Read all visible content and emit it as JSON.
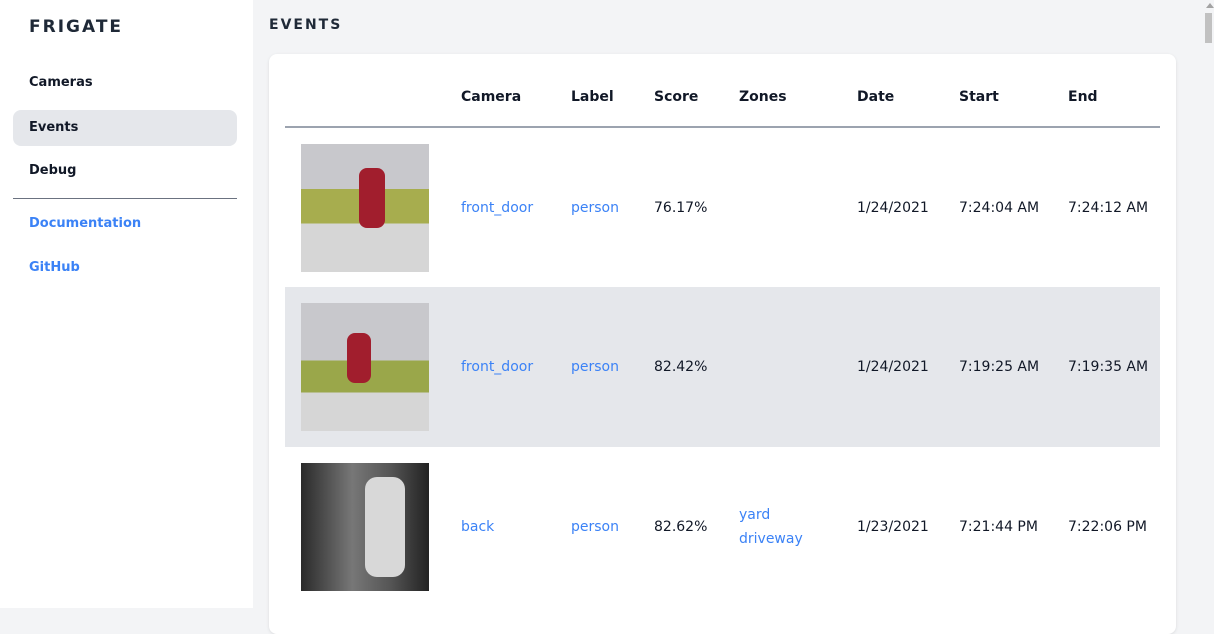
{
  "app": {
    "title": "FRIGATE"
  },
  "sidebar": {
    "items": [
      {
        "label": "Cameras"
      },
      {
        "label": "Events",
        "active": true
      },
      {
        "label": "Debug"
      }
    ],
    "links": [
      {
        "label": "Documentation"
      },
      {
        "label": "GitHub"
      }
    ]
  },
  "page": {
    "title": "EVENTS"
  },
  "table": {
    "columns": [
      "",
      "Camera",
      "Label",
      "Score",
      "Zones",
      "Date",
      "Start",
      "End"
    ],
    "rows": [
      {
        "camera": "front_door",
        "label": "person",
        "score": "76.17%",
        "zones": [
          "",
          ""
        ],
        "date": "1/24/2021",
        "start": "7:24:04 AM",
        "end": "7:24:12 AM"
      },
      {
        "camera": "front_door",
        "label": "person",
        "score": "82.42%",
        "zones": [
          "",
          ""
        ],
        "date": "1/24/2021",
        "start": "7:19:25 AM",
        "end": "7:19:35 AM"
      },
      {
        "camera": "back",
        "label": "person",
        "score": "82.62%",
        "zones": [
          "yard",
          "driveway"
        ],
        "date": "1/23/2021",
        "start": "7:21:44 PM",
        "end": "7:22:06 PM"
      }
    ]
  },
  "colors": {
    "accent": "#3b82f6",
    "active_bg": "#e5e7eb",
    "page_bg": "#f3f4f6"
  }
}
